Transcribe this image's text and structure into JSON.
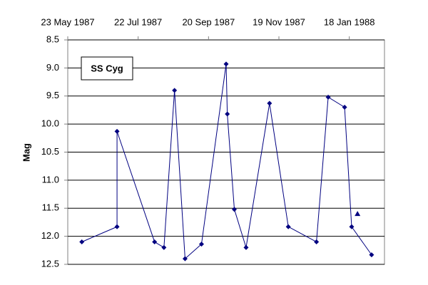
{
  "chart_data": {
    "type": "line",
    "title": "SS Cyg",
    "ylabel": "Mag",
    "series": [
      {
        "color": "#000080",
        "marker": "diamond",
        "line": true,
        "x": [
          "1987-06-04",
          "1987-07-04",
          "1987-07-04",
          "1987-08-05",
          "1987-08-13",
          "1987-08-22",
          "1987-08-31",
          "1987-09-14",
          "1987-10-05",
          "1987-10-06",
          "1987-10-12",
          "1987-10-22",
          "1987-11-11",
          "1987-11-27",
          "1987-12-21",
          "1987-12-31",
          "1988-01-14",
          "1988-01-20",
          "1988-02-06"
        ],
        "values": [
          12.1,
          11.83,
          10.13,
          12.1,
          12.2,
          9.4,
          12.4,
          12.14,
          8.93,
          9.82,
          11.52,
          12.2,
          9.63,
          11.83,
          12.1,
          9.52,
          9.7,
          11.83,
          12.33
        ]
      },
      {
        "color": "#000080",
        "marker": "triangle",
        "line": false,
        "x": [
          "1988-01-25"
        ],
        "values": [
          11.6
        ]
      }
    ],
    "xlim": [
      "1987-05-23",
      "1988-02-17"
    ],
    "xticks": [
      {
        "value": "1987-05-23",
        "label": "23 May 1987"
      },
      {
        "value": "1987-07-22",
        "label": "22 Jul 1987"
      },
      {
        "value": "1987-09-20",
        "label": "20 Sep 1987"
      },
      {
        "value": "1987-11-19",
        "label": "19 Nov 1987"
      },
      {
        "value": "1988-01-18",
        "label": "18 Jan 1988"
      }
    ],
    "ylim": [
      12.5,
      8.5
    ],
    "yticks": [
      8.5,
      {
        "value": 9,
        "label": "9.0"
      },
      9.5,
      {
        "value": 10,
        "label": "10.0"
      },
      10.5,
      {
        "value": 11,
        "label": "11.0"
      },
      11.5,
      {
        "value": 12,
        "label": "12.0"
      },
      12.5
    ],
    "grid": true
  }
}
